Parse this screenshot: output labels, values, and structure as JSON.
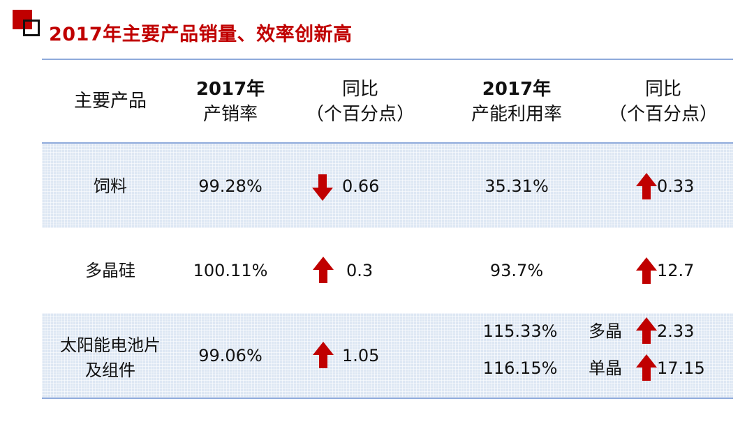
{
  "title": "2017年主要产品销量、效率创新高",
  "colors": {
    "accent": "#c00000",
    "arrow": "#c00000",
    "rule": "#8eaadb",
    "band": "#dde7f3"
  },
  "headers": {
    "product": "主要产品",
    "sales_rate": [
      "2017年",
      "产销率"
    ],
    "sales_yoy": [
      "同比",
      "（个百分点）"
    ],
    "capacity_rate": [
      "2017年",
      "产能利用率"
    ],
    "capacity_yoy": [
      "同比",
      "（个百分点）"
    ]
  },
  "rows": [
    {
      "product": "饲料",
      "sales_rate": "99.28%",
      "sales_yoy": {
        "direction": "down",
        "value": "0.66"
      },
      "capacity_rate": "35.31%",
      "capacity_yoy": {
        "direction": "up",
        "value": "0.33"
      }
    },
    {
      "product": "多晶硅",
      "sales_rate": "100.11%",
      "sales_yoy": {
        "direction": "up",
        "value": "0.3"
      },
      "capacity_rate": "93.7%",
      "capacity_yoy": {
        "direction": "up",
        "value": "12.7"
      }
    },
    {
      "product": [
        "太阳能电池片",
        "及组件"
      ],
      "sales_rate": "99.06%",
      "sales_yoy": {
        "direction": "up",
        "value": "1.05"
      },
      "capacity_rate_multi": [
        "115.33%",
        "116.15%"
      ],
      "capacity_yoy_multi": [
        {
          "label": "多晶",
          "direction": "up",
          "value": "2.33"
        },
        {
          "label": "单晶",
          "direction": "up",
          "value": "17.15"
        }
      ]
    }
  ]
}
